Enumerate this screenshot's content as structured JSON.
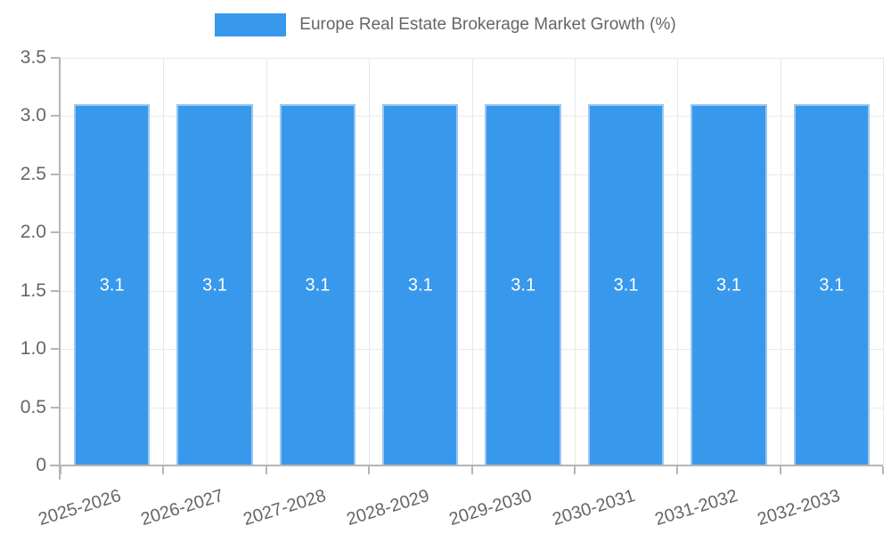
{
  "chart_data": {
    "type": "bar",
    "title": "Europe Real Estate Brokerage Market Growth (%)",
    "categories": [
      "2025-2026",
      "2026-2027",
      "2027-2028",
      "2028-2029",
      "2029-2030",
      "2030-2031",
      "2031-2032",
      "2032-2033"
    ],
    "values": [
      3.1,
      3.1,
      3.1,
      3.1,
      3.1,
      3.1,
      3.1,
      3.1
    ],
    "bar_labels": [
      "3.1",
      "3.1",
      "3.1",
      "3.1",
      "3.1",
      "3.1",
      "3.1",
      "3.1"
    ],
    "xlabel": "",
    "ylabel": "",
    "ylim": [
      0,
      3.5
    ],
    "yticks": [
      {
        "label": "0",
        "value": 0
      },
      {
        "label": "0.5",
        "value": 0.5
      },
      {
        "label": "1.0",
        "value": 1.0
      },
      {
        "label": "1.5",
        "value": 1.5
      },
      {
        "label": "2.0",
        "value": 2.0
      },
      {
        "label": "2.5",
        "value": 2.5
      },
      {
        "label": "3.0",
        "value": 3.0
      },
      {
        "label": "3.5",
        "value": 3.5
      }
    ],
    "grid": true,
    "legend_position": "top",
    "colors": {
      "bar_fill": "#3898ec",
      "bar_border": "#9cc7f1",
      "bar_label_text": "#ffffff",
      "grid_line": "#e8e8e8",
      "axis_line": "#b5b5b5",
      "tick_text": "#666666"
    }
  },
  "legend": {
    "label": "Europe Real Estate Brokerage Market Growth (%)"
  }
}
